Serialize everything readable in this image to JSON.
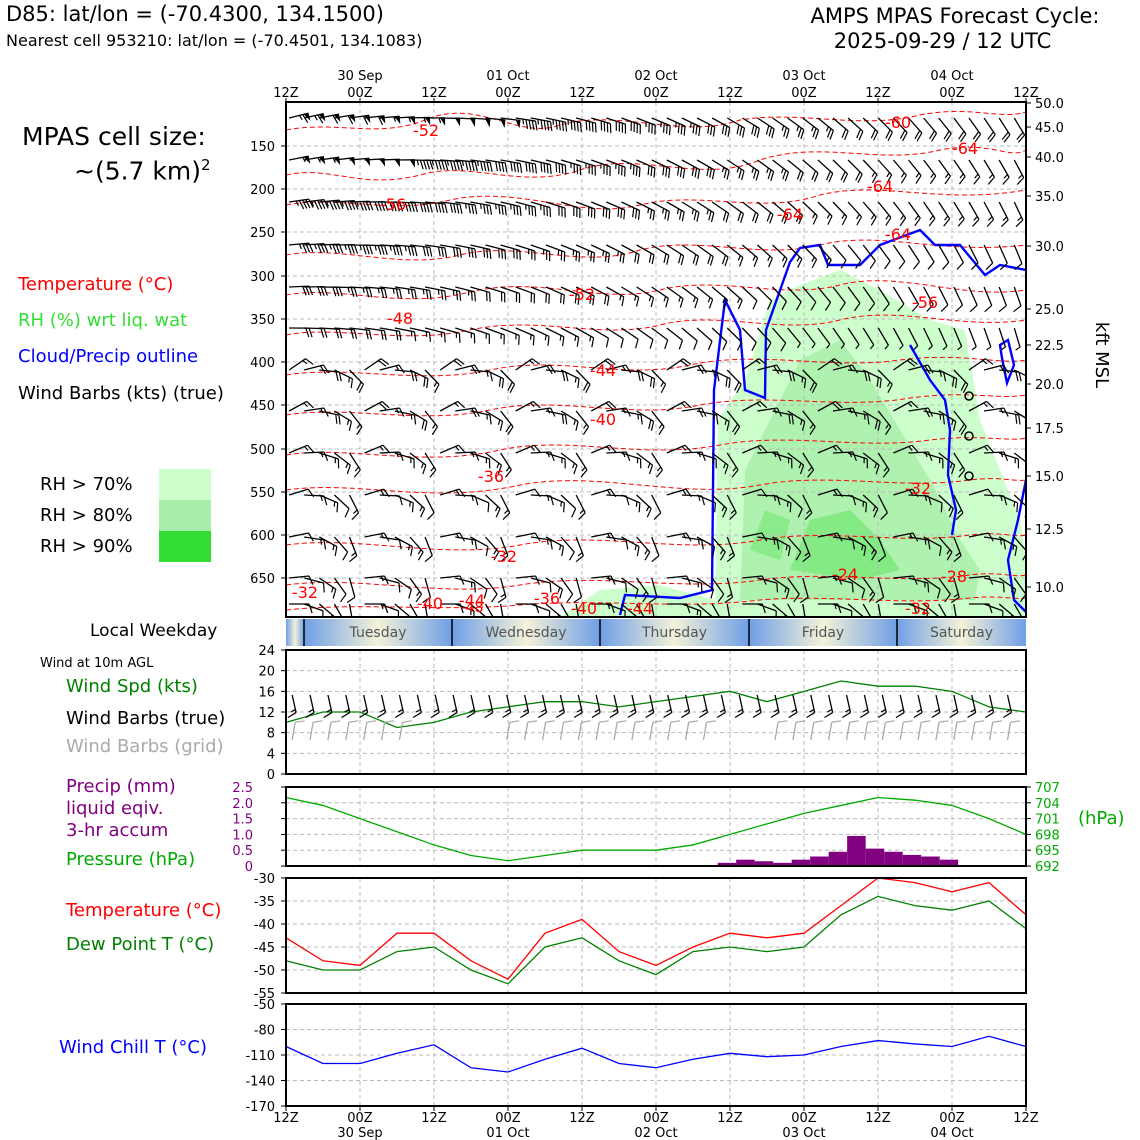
{
  "header": {
    "station": "D85: lat/lon = (-70.4300, 134.1500)",
    "nearest": "Nearest cell 953210: lat/lon = (-70.4501, 134.1083)",
    "cycle_line1": "AMPS MPAS Forecast Cycle:",
    "cycle_line2": "2025-09-29 / 12 UTC"
  },
  "cell": {
    "line1": "MPAS cell size:",
    "line2": "~(5.7 km)",
    "sup": "2"
  },
  "legend": {
    "temperature": "Temperature (°C)",
    "rh": "RH (%) wrt liq. wat",
    "cloud": "Cloud/Precip outline",
    "wind": "Wind Barbs (kts) (true)",
    "rh70": "RH > 70%",
    "rh80": "RH > 80%",
    "rh90": "RH > 90%"
  },
  "colors": {
    "temp": "#ff0000",
    "rh70": "#ccffcc",
    "rh80": "#a8eda8",
    "rh90": "#33dd33",
    "cloud": "#0000ff",
    "wind_spd": "#008000",
    "grid_barb": "#aaaaaa",
    "precip": "#800080",
    "pressure": "#00aa00",
    "dewpoint": "#008000",
    "windchill": "#0000ff"
  },
  "time_axis": {
    "top_dates": [
      "30 Sep",
      "01 Oct",
      "02 Oct",
      "03 Oct",
      "04 Oct"
    ],
    "labels": [
      "12Z",
      "00Z",
      "12Z",
      "00Z",
      "12Z",
      "00Z",
      "12Z",
      "00Z",
      "12Z",
      "00Z",
      "12Z"
    ]
  },
  "weekday": {
    "title": "Local Weekday",
    "days": [
      "Tuesday",
      "Wednesday",
      "Thursday",
      "Friday",
      "Saturday"
    ]
  },
  "profile": {
    "pressure_ticks": [
      "150",
      "200",
      "250",
      "300",
      "350",
      "400",
      "450",
      "500",
      "550",
      "600",
      "650"
    ],
    "kft_ticks": [
      "50.0",
      "45.0",
      "40.0",
      "35.0",
      "30.0",
      "25.0",
      "22.5",
      "20.0",
      "17.5",
      "15.0",
      "12.5",
      "10.0"
    ],
    "right_label": "kft MSL",
    "temp_labels": [
      "-52",
      "-60",
      "-64",
      "-64",
      "-56",
      "-64",
      "-64",
      "-56",
      "-52",
      "-48",
      "-44",
      "-40",
      "-36",
      "-32",
      "-32",
      "-24",
      "-28",
      "-32",
      "-40",
      "-44",
      "-48",
      "-36",
      "-40",
      "-44",
      "-32"
    ]
  },
  "wind_panel": {
    "caption": "Wind at 10m AGL",
    "spd_label": "Wind Spd (kts)",
    "true_label": "Wind Barbs (true)",
    "grid_label": "Wind Barbs (grid)",
    "ticks": [
      "24",
      "20",
      "16",
      "12",
      "8",
      "4",
      "0"
    ]
  },
  "precip_panel": {
    "label1": "Precip (mm)",
    "label2": "liquid eqiv.",
    "label3": "3-hr accum",
    "pressure_label": "Pressure (hPa)",
    "left_ticks": [
      "2.5",
      "2.0",
      "1.5",
      "1.0",
      "0.5",
      "0"
    ],
    "right_ticks": [
      "707",
      "704",
      "701",
      "698",
      "695",
      "692"
    ],
    "unit": "(hPa)"
  },
  "temp_panel": {
    "temp_label": "Temperature (°C)",
    "dew_label": "Dew Point T (°C)",
    "ticks": [
      "-30",
      "-35",
      "-40",
      "-45",
      "-50",
      "-55"
    ]
  },
  "chill_panel": {
    "label": "Wind Chill T (°C)",
    "ticks": [
      "-50",
      "-80",
      "-110",
      "-140",
      "-170"
    ]
  },
  "chart_data": {
    "type": "line",
    "title": "AMPS MPAS Forecast Cycle: 2025-09-29 / 12 UTC",
    "x_hours": [
      0,
      6,
      12,
      18,
      24,
      30,
      36,
      42,
      48,
      54,
      60,
      66,
      72,
      78,
      84,
      90,
      96,
      102,
      108,
      114,
      120
    ],
    "series": [
      {
        "name": "Wind Spd (kts)",
        "values": [
          10,
          12,
          12,
          9,
          10,
          12,
          13,
          14,
          14,
          13,
          14,
          15,
          16,
          14,
          16,
          18,
          17,
          17,
          16,
          13,
          12
        ]
      },
      {
        "name": "Pressure (hPa)",
        "values": [
          705,
          703.5,
          701,
          698.5,
          696,
          694,
          693,
          694,
          695,
          695,
          695,
          696,
          698,
          700,
          702,
          703.5,
          705,
          704.5,
          703.5,
          701,
          698
        ]
      },
      {
        "name": "Temperature (°C)",
        "values": [
          -43,
          -48,
          -49,
          -42,
          -42,
          -48,
          -52,
          -42,
          -39,
          -46,
          -49,
          -45,
          -42,
          -43,
          -42,
          -36,
          -30,
          -31,
          -33,
          -31,
          -38
        ]
      },
      {
        "name": "Dew Point T (°C)",
        "values": [
          -48,
          -50,
          -50,
          -46,
          -45,
          -50,
          -53,
          -45,
          -43,
          -48,
          -51,
          -46,
          -45,
          -46,
          -45,
          -38,
          -34,
          -36,
          -37,
          -35,
          -41
        ]
      },
      {
        "name": "Wind Chill T (°C)",
        "values": [
          -100,
          -120,
          -120,
          -108,
          -98,
          -125,
          -130,
          -115,
          -102,
          -120,
          -125,
          -115,
          -108,
          -112,
          -110,
          -100,
          -93,
          -97,
          -100,
          -88,
          -100
        ]
      }
    ],
    "precip_mm": {
      "hours": [
        70,
        73,
        76,
        79,
        82,
        85,
        88,
        91,
        94,
        97,
        100,
        103,
        106
      ],
      "values": [
        0.1,
        0.2,
        0.15,
        0.1,
        0.2,
        0.3,
        0.45,
        0.95,
        0.55,
        0.45,
        0.35,
        0.3,
        0.2
      ]
    },
    "ylim_wind": [
      0,
      24
    ],
    "ylim_precip": [
      0,
      2.5
    ],
    "ylim_pressure": [
      692,
      707
    ],
    "ylim_temp": [
      -55,
      -30
    ],
    "ylim_chill": [
      -170,
      -50
    ]
  }
}
